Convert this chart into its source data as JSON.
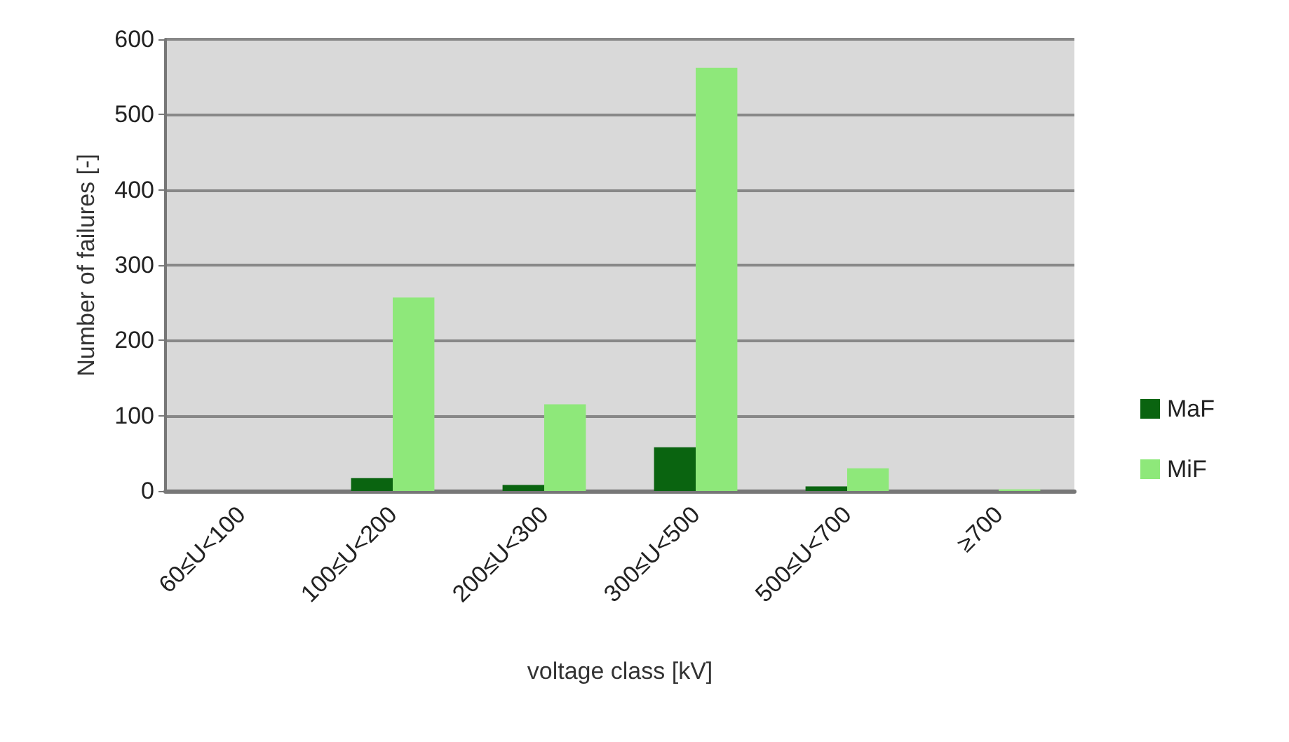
{
  "chart_data": {
    "type": "bar",
    "xlabel": "voltage class [kV]",
    "ylabel": "Number of failures [-]",
    "categories": [
      "60≤U<100",
      "100≤U<200",
      "200≤U<300",
      "300≤U<500",
      "500≤U<700",
      "≥700"
    ],
    "series": [
      {
        "name": "MaF",
        "color": "#0a6410",
        "values": [
          0,
          17,
          8,
          58,
          6,
          0
        ]
      },
      {
        "name": "MiF",
        "color": "#8ee87a",
        "values": [
          0,
          257,
          115,
          562,
          30,
          2
        ]
      }
    ],
    "ylim": [
      0,
      600
    ],
    "yticks": [
      0,
      100,
      200,
      300,
      400,
      500,
      600
    ],
    "grid": "y",
    "legend": "right"
  }
}
